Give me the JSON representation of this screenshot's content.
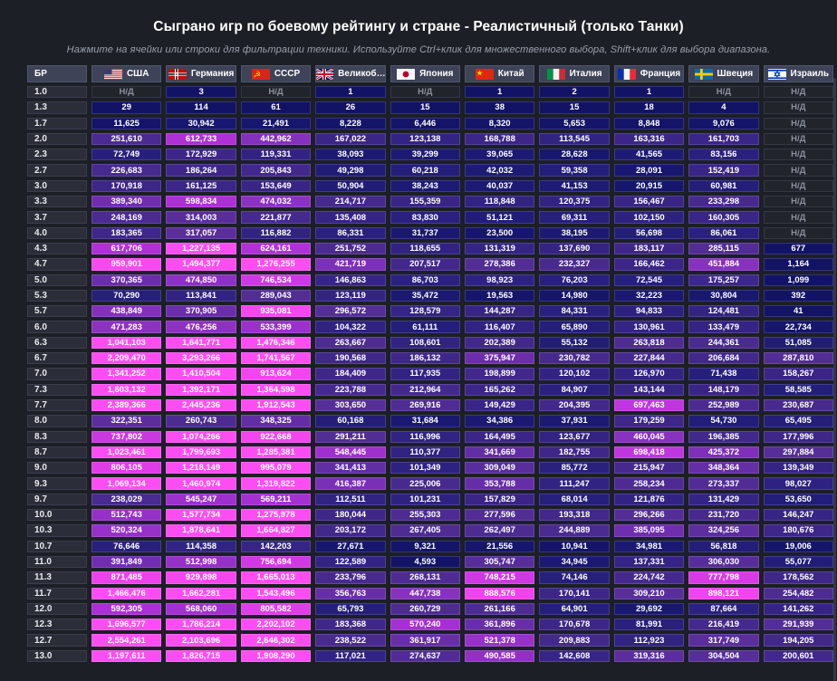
{
  "page": {
    "title": "Сыграно игр по боевому рейтингу и стране - Реалистичный (только Танки)",
    "subtitle": "Нажмите на ячейки или строки для фильтрации техники. Используйте Ctrl+клик для множественного выбора, Shift+клик для выбора диапазона."
  },
  "colors": {
    "background": "#1c1f25",
    "header_bg": "#3e4357",
    "br_cell_bg": "#2b2d38",
    "na_cell_bg": "#22242c",
    "na_text": "#8b919c",
    "cell_text": "#ffffff",
    "heat_scale": [
      [
        0,
        "#131366"
      ],
      [
        25000,
        "#17166e"
      ],
      [
        50000,
        "#211d77"
      ],
      [
        100000,
        "#2e2281"
      ],
      [
        150000,
        "#382585"
      ],
      [
        200000,
        "#42288b"
      ],
      [
        250000,
        "#4b2b91"
      ],
      [
        300000,
        "#552e97"
      ],
      [
        350000,
        "#642ea5"
      ],
      [
        400000,
        "#742db4"
      ],
      [
        450000,
        "#8732be"
      ],
      [
        500000,
        "#9231c6"
      ],
      [
        600000,
        "#ad2fd6"
      ],
      [
        700000,
        "#bf36de"
      ],
      [
        800000,
        "#df3ce8"
      ],
      [
        900000,
        "#f044ee"
      ],
      [
        1000000,
        "#fc4df2"
      ]
    ]
  },
  "chart_data": {
    "type": "heatmap",
    "title": "Сыграно игр по боевому рейтингу и стране - Реалистичный (только Танки)",
    "na_label": "Н/Д",
    "value_max_saturation": 1000000,
    "columns": [
      {
        "key": "br",
        "label": "БР",
        "flag": null
      },
      {
        "key": "usa",
        "label": "США",
        "flag": "usa"
      },
      {
        "key": "germany",
        "label": "Германия",
        "flag": "germany"
      },
      {
        "key": "ussr",
        "label": "СССР",
        "flag": "ussr"
      },
      {
        "key": "uk",
        "label": "Великоб…",
        "flag": "uk"
      },
      {
        "key": "japan",
        "label": "Япония",
        "flag": "japan"
      },
      {
        "key": "china",
        "label": "Китай",
        "flag": "china"
      },
      {
        "key": "italy",
        "label": "Италия",
        "flag": "italy"
      },
      {
        "key": "france",
        "label": "Франция",
        "flag": "france"
      },
      {
        "key": "sweden",
        "label": "Швеция",
        "flag": "sweden"
      },
      {
        "key": "israel",
        "label": "Израиль",
        "flag": "israel"
      }
    ],
    "rows": [
      {
        "br": "1.0",
        "values": [
          null,
          3,
          null,
          1,
          null,
          1,
          2,
          1,
          null,
          null
        ]
      },
      {
        "br": "1.3",
        "values": [
          29,
          114,
          61,
          26,
          15,
          38,
          15,
          18,
          4,
          null
        ]
      },
      {
        "br": "1.7",
        "values": [
          11625,
          30942,
          21491,
          8228,
          6446,
          8320,
          5653,
          8848,
          9076,
          null
        ]
      },
      {
        "br": "2.0",
        "values": [
          251610,
          612733,
          442962,
          167022,
          123138,
          168788,
          113545,
          163316,
          161703,
          null
        ]
      },
      {
        "br": "2.3",
        "values": [
          72749,
          172929,
          119331,
          38093,
          39299,
          39065,
          28628,
          41565,
          83156,
          null
        ]
      },
      {
        "br": "2.7",
        "values": [
          226683,
          186264,
          205843,
          49298,
          60218,
          42032,
          59358,
          28091,
          152419,
          null
        ]
      },
      {
        "br": "3.0",
        "values": [
          170918,
          161125,
          153649,
          50904,
          38243,
          40037,
          41153,
          20915,
          60981,
          null
        ]
      },
      {
        "br": "3.3",
        "values": [
          389340,
          598834,
          474032,
          214717,
          155359,
          118848,
          120375,
          156467,
          233298,
          null
        ]
      },
      {
        "br": "3.7",
        "values": [
          248169,
          314003,
          221877,
          135408,
          83830,
          51121,
          69311,
          102150,
          160305,
          null
        ]
      },
      {
        "br": "4.0",
        "values": [
          183365,
          317057,
          116882,
          86331,
          31737,
          23500,
          38195,
          56698,
          86061,
          null
        ]
      },
      {
        "br": "4.3",
        "values": [
          617706,
          1227135,
          624161,
          251752,
          118655,
          131319,
          137690,
          183117,
          285115,
          677
        ]
      },
      {
        "br": "4.7",
        "values": [
          959901,
          1494377,
          1276255,
          421719,
          207517,
          278386,
          232327,
          166462,
          451884,
          1164
        ]
      },
      {
        "br": "5.0",
        "values": [
          370365,
          474850,
          746534,
          146863,
          86703,
          98923,
          76203,
          72545,
          175257,
          1099
        ]
      },
      {
        "br": "5.3",
        "values": [
          70290,
          113841,
          289043,
          123119,
          35472,
          19563,
          14980,
          32223,
          30804,
          392
        ]
      },
      {
        "br": "5.7",
        "values": [
          438849,
          370905,
          935081,
          296572,
          128579,
          144287,
          84331,
          94833,
          124481,
          41
        ]
      },
      {
        "br": "6.0",
        "values": [
          471283,
          476256,
          533399,
          104322,
          61111,
          116407,
          65890,
          130961,
          133479,
          22734
        ]
      },
      {
        "br": "6.3",
        "values": [
          1041103,
          1641771,
          1476346,
          263667,
          108601,
          202389,
          55132,
          263818,
          244361,
          51085
        ]
      },
      {
        "br": "6.7",
        "values": [
          2209470,
          3293266,
          1741567,
          190568,
          186132,
          375947,
          230782,
          227844,
          206684,
          287810
        ]
      },
      {
        "br": "7.0",
        "values": [
          1341252,
          1410504,
          913624,
          184409,
          117935,
          198899,
          120102,
          126970,
          71438,
          158267
        ]
      },
      {
        "br": "7.3",
        "values": [
          1603132,
          1392171,
          1364598,
          223788,
          212964,
          165262,
          84907,
          143144,
          148179,
          58585
        ]
      },
      {
        "br": "7.7",
        "values": [
          2389366,
          2445236,
          1912543,
          303650,
          269916,
          149429,
          204395,
          697463,
          252989,
          230687
        ]
      },
      {
        "br": "8.0",
        "values": [
          322351,
          260743,
          348325,
          60168,
          31684,
          34386,
          37931,
          179259,
          54730,
          65495
        ]
      },
      {
        "br": "8.3",
        "values": [
          737802,
          1074266,
          922668,
          291211,
          116996,
          164495,
          123677,
          460045,
          196385,
          177996
        ]
      },
      {
        "br": "8.7",
        "values": [
          1023461,
          1799693,
          1285381,
          548445,
          110377,
          341669,
          182755,
          698418,
          425372,
          297884
        ]
      },
      {
        "br": "9.0",
        "values": [
          806105,
          1218149,
          995079,
          341413,
          101349,
          309049,
          85772,
          215947,
          348364,
          139349
        ]
      },
      {
        "br": "9.3",
        "values": [
          1069134,
          1460974,
          1319822,
          416387,
          225006,
          353788,
          111247,
          258234,
          273337,
          98027
        ]
      },
      {
        "br": "9.7",
        "values": [
          238029,
          545247,
          569211,
          112511,
          101231,
          157829,
          68014,
          121876,
          131429,
          53650
        ]
      },
      {
        "br": "10.0",
        "values": [
          512743,
          1577734,
          1275978,
          180044,
          255303,
          277596,
          193318,
          296266,
          231720,
          146247
        ]
      },
      {
        "br": "10.3",
        "values": [
          520324,
          1878641,
          1664827,
          203172,
          267405,
          262497,
          244889,
          385095,
          324256,
          180676
        ]
      },
      {
        "br": "10.7",
        "values": [
          76646,
          114358,
          142203,
          27671,
          9321,
          21556,
          10941,
          34981,
          56818,
          19006
        ]
      },
      {
        "br": "11.0",
        "values": [
          391849,
          512998,
          756694,
          122589,
          4593,
          305747,
          34945,
          137331,
          306030,
          55077
        ]
      },
      {
        "br": "11.3",
        "values": [
          871485,
          929898,
          1665013,
          233796,
          268131,
          748215,
          74146,
          224742,
          777798,
          178562
        ]
      },
      {
        "br": "11.7",
        "values": [
          1466476,
          1662281,
          1543496,
          356763,
          447738,
          888576,
          170141,
          309210,
          898121,
          254482
        ]
      },
      {
        "br": "12.0",
        "values": [
          592305,
          568060,
          805582,
          65793,
          260729,
          261166,
          64901,
          29692,
          87664,
          141262
        ]
      },
      {
        "br": "12.3",
        "values": [
          1696577,
          1786214,
          2202102,
          183368,
          570240,
          361896,
          170678,
          81991,
          216419,
          291939
        ]
      },
      {
        "br": "12.7",
        "values": [
          2554261,
          2103696,
          2646302,
          238522,
          361917,
          521378,
          209883,
          112923,
          317749,
          194205
        ]
      },
      {
        "br": "13.0",
        "values": [
          1197611,
          1826715,
          1908290,
          117021,
          274637,
          490585,
          142608,
          319316,
          304504,
          200601
        ]
      }
    ]
  }
}
